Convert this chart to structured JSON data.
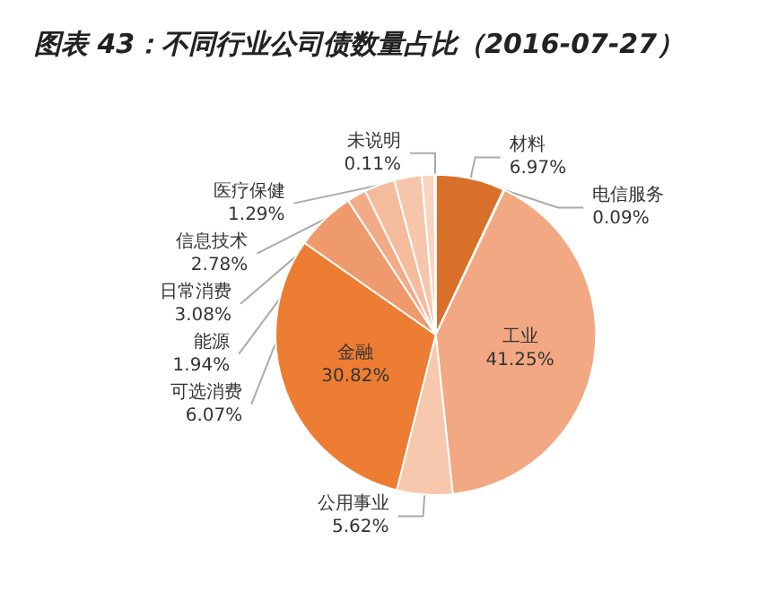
{
  "chart_data": {
    "type": "pie",
    "title": "图表 43：不同行业公司债数量占比（2016-07-27）",
    "categories": [
      "材料",
      "电信服务",
      "工业",
      "公用事业",
      "金融",
      "可选消费",
      "能源",
      "日常消费",
      "信息技术",
      "医疗保健",
      "未说明"
    ],
    "values": [
      6.97,
      0.09,
      41.25,
      5.62,
      30.82,
      6.07,
      1.94,
      3.08,
      2.78,
      1.29,
      0.11
    ],
    "value_labels": [
      "6.97%",
      "0.09%",
      "41.25%",
      "5.62%",
      "30.82%",
      "6.07%",
      "1.94%",
      "3.08%",
      "2.78%",
      "1.29%",
      "0.11%"
    ],
    "colors": [
      "#d9702a",
      "#e8956a",
      "#f2a882",
      "#f7c8ae",
      "#ec7d32",
      "#ee9a6c",
      "#f1ab86",
      "#f4bb9c",
      "#f6c6ac",
      "#f8d3bf",
      "#fbe3d5"
    ],
    "legend": false
  }
}
